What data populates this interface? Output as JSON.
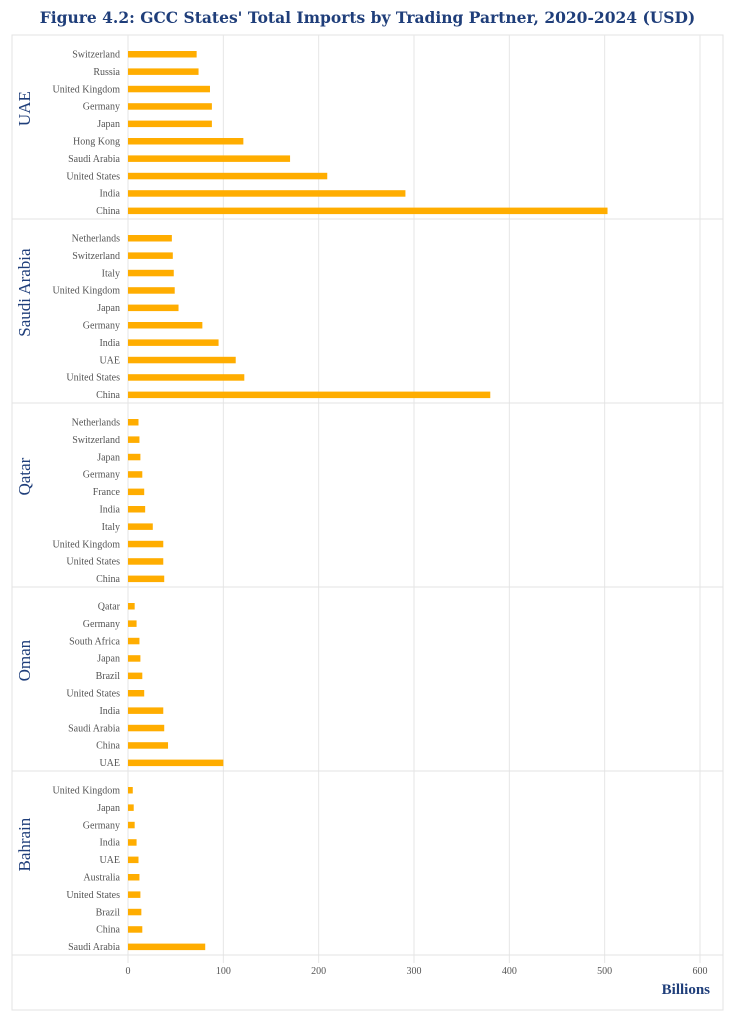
{
  "chart_data": {
    "type": "bar",
    "orientation": "horizontal",
    "title": "Figure 4.2: GCC States' Total Imports by Trading Partner, 2020-2024 (USD)",
    "xlabel": "Billions",
    "xlim": [
      0,
      600
    ],
    "xticks": [
      "0",
      "100",
      "200",
      "300",
      "400",
      "500",
      "600"
    ],
    "grid": true,
    "bar_color": "#ffad00",
    "title_color": "#1f3e7a",
    "groups": [
      {
        "name": "UAE",
        "categories": [
          "Switzerland",
          "Russia",
          "United Kingdom",
          "Germany",
          "Japan",
          "Hong Kong",
          "Saudi Arabia",
          "United States",
          "India",
          "China"
        ],
        "values": [
          72,
          74,
          86,
          88,
          88,
          121,
          170,
          209,
          291,
          503
        ]
      },
      {
        "name": "Saudi Arabia",
        "categories": [
          "Netherlands",
          "Switzerland",
          "Italy",
          "United Kingdom",
          "Japan",
          "Germany",
          "India",
          "UAE",
          "United States",
          "China"
        ],
        "values": [
          46,
          47,
          48,
          49,
          53,
          78,
          95,
          113,
          122,
          380
        ]
      },
      {
        "name": "Qatar",
        "categories": [
          "Netherlands",
          "Switzerland",
          "Japan",
          "Germany",
          "France",
          "India",
          "Italy",
          "United Kingdom",
          "United States",
          "China"
        ],
        "values": [
          11,
          12,
          13,
          15,
          17,
          18,
          26,
          37,
          37,
          38
        ]
      },
      {
        "name": "Oman",
        "categories": [
          "Qatar",
          "Germany",
          "South Africa",
          "Japan",
          "Brazil",
          "United States",
          "India",
          "Saudi Arabia",
          "China",
          "UAE"
        ],
        "values": [
          7,
          9,
          12,
          13,
          15,
          17,
          37,
          38,
          42,
          100
        ]
      },
      {
        "name": "Bahrain",
        "categories": [
          "United Kingdom",
          "Japan",
          "Germany",
          "India",
          "UAE",
          "Australia",
          "United States",
          "Brazil",
          "China",
          "Saudi Arabia"
        ],
        "values": [
          5,
          6,
          7,
          9,
          11,
          12,
          13,
          14,
          15,
          81
        ]
      }
    ]
  }
}
